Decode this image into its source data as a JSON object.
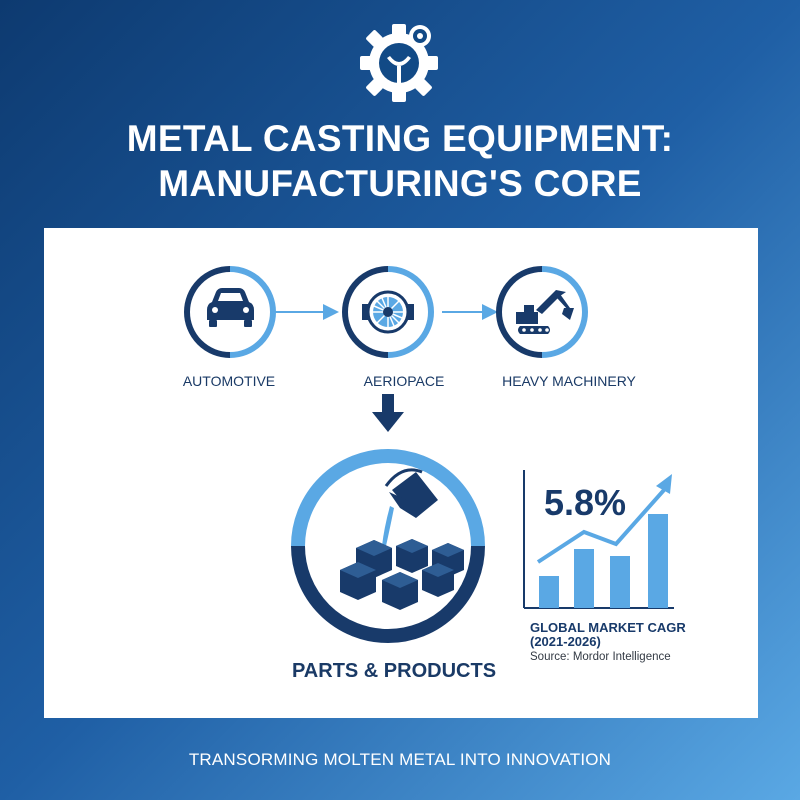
{
  "logo": {
    "icon": "gear-ladle-icon"
  },
  "title": {
    "line1": "METAL CASTING EQUIPMENT:",
    "line2": "MANUFACTURING'S CORE"
  },
  "industries": [
    {
      "label": "AUTOMOTIVE",
      "icon": "car-icon"
    },
    {
      "label": "AERIOPACE",
      "icon": "turbine-icon"
    },
    {
      "label": "HEAVY MACHINERY",
      "icon": "excavator-icon"
    }
  ],
  "output": {
    "label": "PARTS & PRODUCTS",
    "icon": "pouring-ladle-icon"
  },
  "cagr": {
    "value": "5.8%",
    "label_line1": "GLOBAL MARKET CAGR",
    "label_line2": "(2021-2026)",
    "source": "Source: Mordor Intelligence",
    "icon": "bar-growth-icon"
  },
  "tagline": "TRANSORMING MOLTEN METAL INTO INNOVATION",
  "colors": {
    "navy": "#183a6a",
    "light_blue": "#5aa8e4",
    "panel": "#ffffff"
  }
}
